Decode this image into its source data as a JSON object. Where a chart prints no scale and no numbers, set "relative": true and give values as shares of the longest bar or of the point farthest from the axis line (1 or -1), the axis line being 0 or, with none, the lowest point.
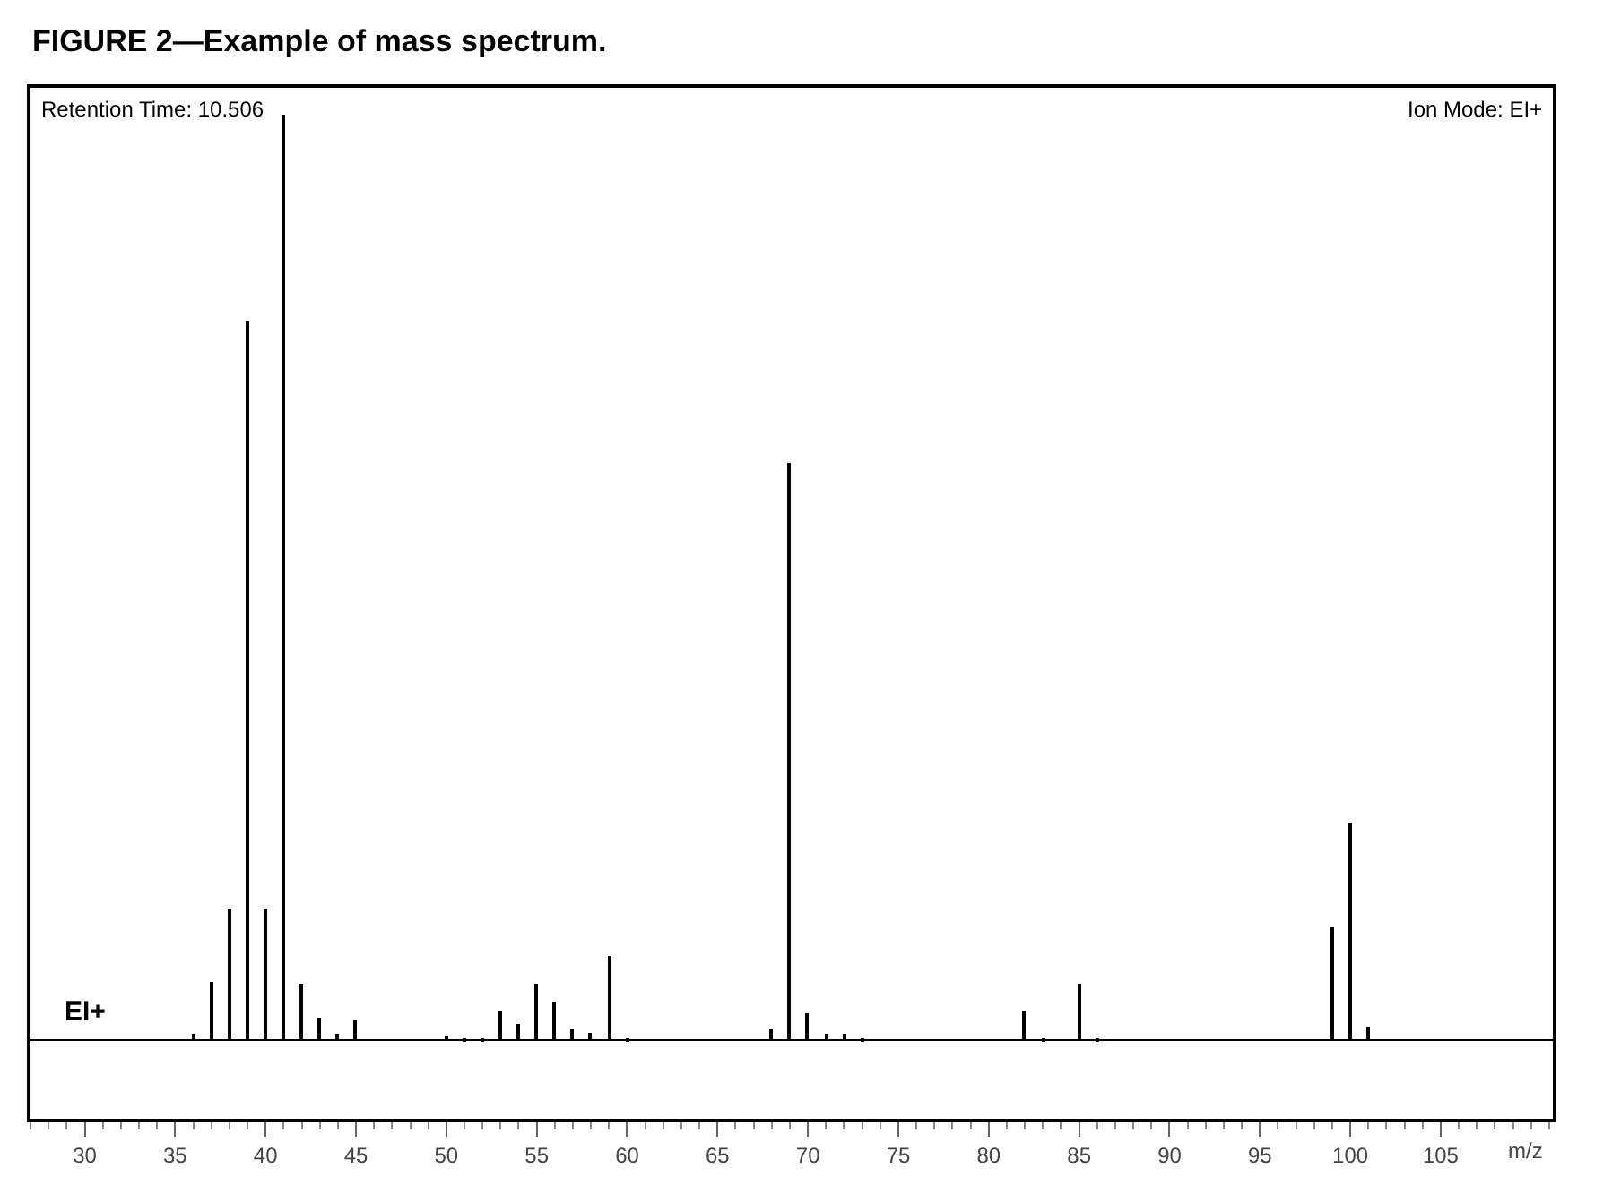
{
  "chart_data": {
    "type": "bar",
    "relative": true,
    "title": "FIGURE 2—Example of mass spectrum.",
    "xlabel": "m/z",
    "annotations": [
      "Retention Time: 10.506",
      "Ion Mode: EI+",
      "EI+"
    ],
    "x": [
      36,
      37,
      38,
      39,
      40,
      41,
      42,
      43,
      44,
      45,
      50,
      51,
      52,
      53,
      54,
      55,
      56,
      57,
      58,
      59,
      60,
      68,
      69,
      70,
      71,
      72,
      73,
      82,
      83,
      85,
      86,
      99,
      100,
      101
    ],
    "values": [
      0.006,
      0.062,
      0.142,
      0.777,
      0.142,
      1,
      0.06,
      0.023,
      0.006,
      0.021,
      0.004,
      0.002,
      0.002,
      0.031,
      0.017,
      0.06,
      0.042,
      0.012,
      0.008,
      0.092,
      0.002,
      0.012,
      0.625,
      0.029,
      0.006,
      0.006,
      0.002,
      0.031,
      0.002,
      0.06,
      0.002,
      0.123,
      0.235,
      0.013
    ],
    "color": "#000000",
    "xlim": [
      27,
      111.2
    ],
    "xticks": [
      30,
      35,
      40,
      45,
      50,
      55,
      60,
      65,
      70,
      75,
      80,
      85,
      90,
      95,
      100,
      105
    ]
  }
}
